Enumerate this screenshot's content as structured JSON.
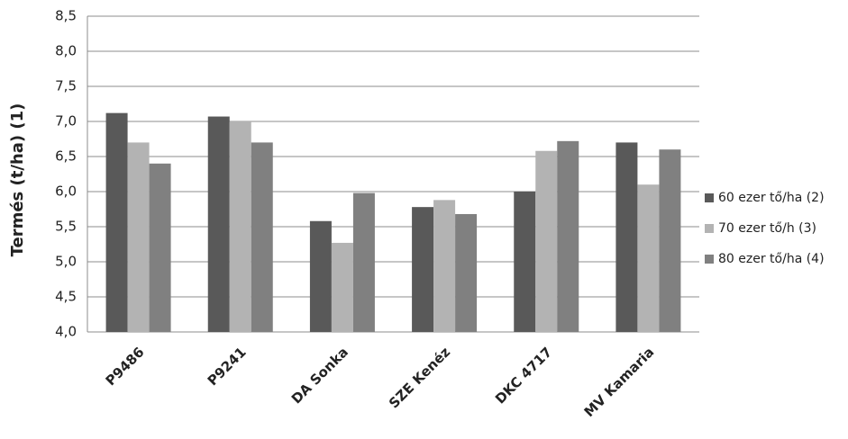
{
  "chart_data": {
    "type": "bar",
    "y_label": "Termés (t/ha) (1)",
    "categories": [
      "P9486",
      "P9241",
      "DA Sonka",
      "SZE Kenéz",
      "DKC 4717",
      "MV Kamaria"
    ],
    "series": [
      {
        "name": "60 ezer tő/ha (2)",
        "color": "#595959",
        "values": [
          7.12,
          7.07,
          5.58,
          5.78,
          6.0,
          6.7
        ]
      },
      {
        "name": "70 ezer tő/h (3)",
        "color": "#b3b3b3",
        "values": [
          6.7,
          7.0,
          5.27,
          5.88,
          6.58,
          6.1
        ]
      },
      {
        "name": "80 ezer tő/ha (4)",
        "color": "#808080",
        "values": [
          6.4,
          6.7,
          5.98,
          5.68,
          6.72,
          6.6
        ]
      }
    ],
    "ylim": [
      4.0,
      8.5
    ],
    "yticks": [
      {
        "value": 4.0,
        "label": "4,0"
      },
      {
        "value": 4.5,
        "label": "4,5"
      },
      {
        "value": 5.0,
        "label": "5,0"
      },
      {
        "value": 5.5,
        "label": "5,5"
      },
      {
        "value": 6.0,
        "label": "6,0"
      },
      {
        "value": 6.5,
        "label": "6,5"
      },
      {
        "value": 7.0,
        "label": "7,0"
      },
      {
        "value": 7.5,
        "label": "7,5"
      },
      {
        "value": 8.0,
        "label": "8,0"
      },
      {
        "value": 8.5,
        "label": "8,5"
      }
    ],
    "grid": true,
    "legend": "right"
  }
}
